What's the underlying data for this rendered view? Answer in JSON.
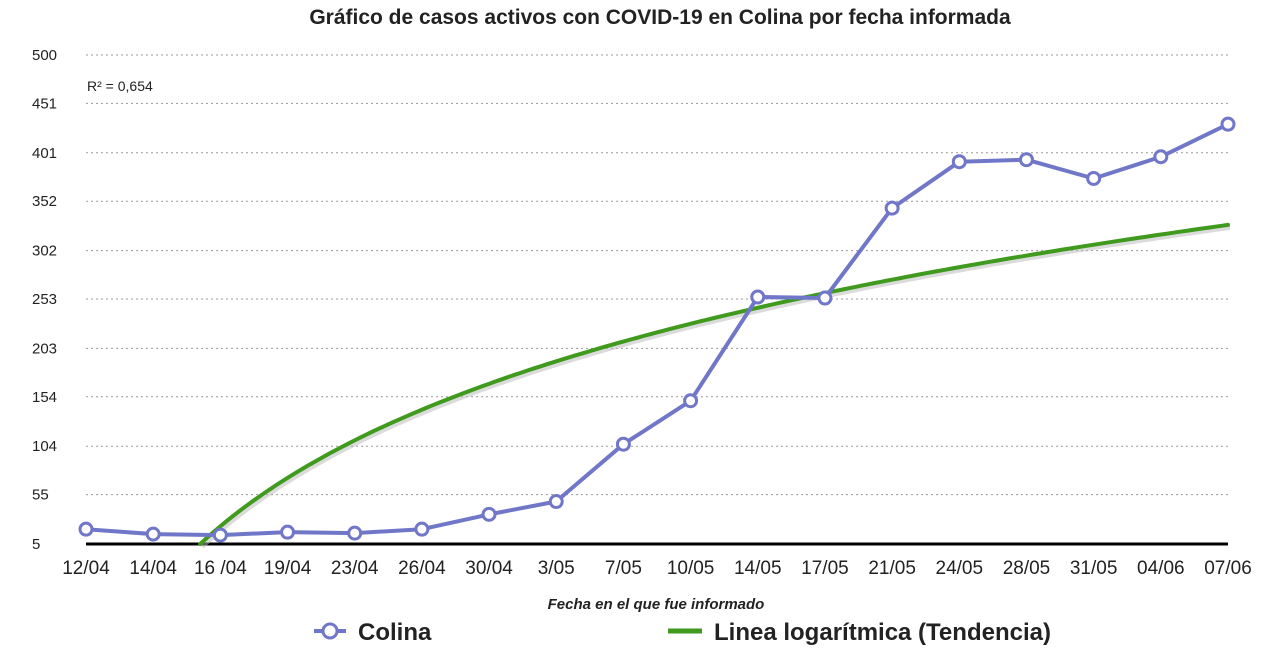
{
  "colors": {
    "series": "#7177c8",
    "trend": "#3f9a1e",
    "grid": "#9a9a9a",
    "axis": "#000000",
    "text": "#222222"
  },
  "chart_data": {
    "type": "line",
    "title": "Gráfico de casos activos con COVID-19 en Colina por fecha informada",
    "xlabel": "Fecha en el que fue informado",
    "ylabel": "",
    "ylim": [
      5,
      500
    ],
    "yticks": [
      "5",
      "55",
      "104",
      "154",
      "203",
      "253",
      "302",
      "352",
      "401",
      "451",
      "500"
    ],
    "grid": "horizontal-dotted",
    "legend_position": "bottom",
    "annotation": "R² = 0,654",
    "categories": [
      "12/04",
      "14/04",
      "16 /04",
      "19/04",
      "23/04",
      "26/04",
      "30/04",
      "3/05",
      "7/05",
      "10/05",
      "14/05",
      "17/05",
      "21/05",
      "24/05",
      "28/05",
      "31/05",
      "04/06",
      "07/06"
    ],
    "series": [
      {
        "name": "Colina",
        "marker": "open-circle",
        "values": [
          20,
          15,
          14,
          17,
          16,
          20,
          35,
          48,
          106,
          150,
          255,
          254,
          345,
          392,
          394,
          375,
          397,
          430
        ]
      }
    ],
    "trendline": {
      "name": "Linea logarítmica (Tendencia)",
      "type": "logarithmic",
      "r_squared": "0,654",
      "start": {
        "x_index": 1.7,
        "y": 5
      },
      "end": {
        "x_index": 17,
        "y": 328
      }
    }
  }
}
